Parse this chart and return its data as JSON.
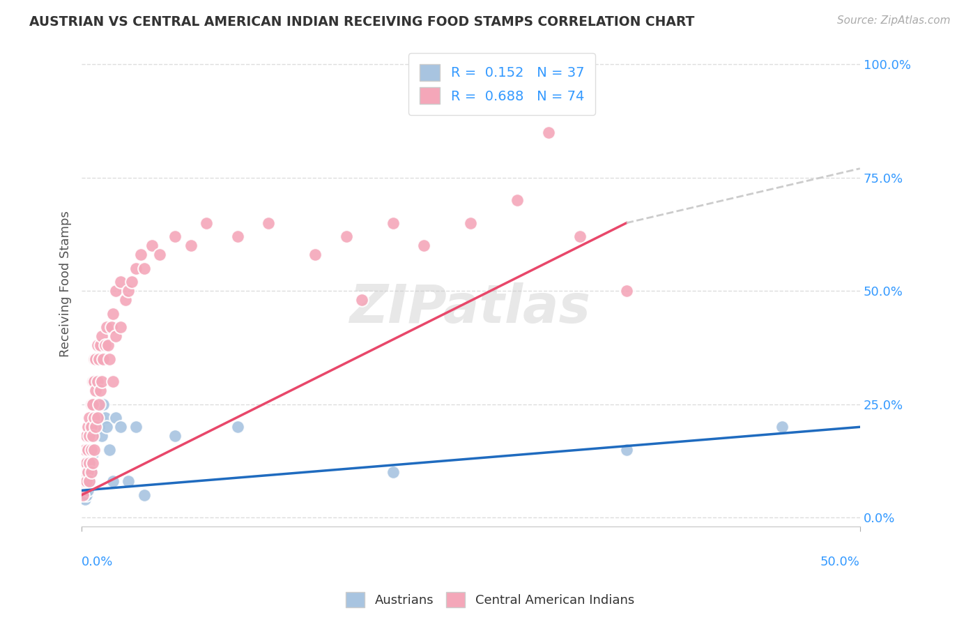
{
  "title": "AUSTRIAN VS CENTRAL AMERICAN INDIAN RECEIVING FOOD STAMPS CORRELATION CHART",
  "source": "Source: ZipAtlas.com",
  "ylabel": "Receiving Food Stamps",
  "ytick_values": [
    0.0,
    0.25,
    0.5,
    0.75,
    1.0
  ],
  "xlim": [
    0.0,
    0.5
  ],
  "ylim": [
    -0.02,
    1.05
  ],
  "watermark": "ZIPatlas",
  "legend1_label": "R =  0.152   N = 37",
  "legend2_label": "R =  0.688   N = 74",
  "austrian_color": "#a8c4e0",
  "central_american_color": "#f4a7b9",
  "austrian_line_color": "#1f6bbf",
  "central_american_line_color": "#e8476a",
  "dashed_line_color": "#cccccc",
  "background_color": "#ffffff",
  "grid_color": "#dddddd",
  "austrian_scatter": [
    [
      0.001,
      0.05
    ],
    [
      0.002,
      0.04
    ],
    [
      0.002,
      0.06
    ],
    [
      0.003,
      0.05
    ],
    [
      0.003,
      0.08
    ],
    [
      0.004,
      0.06
    ],
    [
      0.004,
      0.1
    ],
    [
      0.005,
      0.08
    ],
    [
      0.005,
      0.12
    ],
    [
      0.005,
      0.15
    ],
    [
      0.006,
      0.1
    ],
    [
      0.006,
      0.18
    ],
    [
      0.007,
      0.14
    ],
    [
      0.007,
      0.2
    ],
    [
      0.008,
      0.18
    ],
    [
      0.008,
      0.22
    ],
    [
      0.009,
      0.2
    ],
    [
      0.01,
      0.22
    ],
    [
      0.01,
      0.25
    ],
    [
      0.011,
      0.2
    ],
    [
      0.012,
      0.22
    ],
    [
      0.013,
      0.18
    ],
    [
      0.014,
      0.25
    ],
    [
      0.015,
      0.22
    ],
    [
      0.016,
      0.2
    ],
    [
      0.018,
      0.15
    ],
    [
      0.02,
      0.08
    ],
    [
      0.022,
      0.22
    ],
    [
      0.025,
      0.2
    ],
    [
      0.03,
      0.08
    ],
    [
      0.035,
      0.2
    ],
    [
      0.04,
      0.05
    ],
    [
      0.06,
      0.18
    ],
    [
      0.1,
      0.2
    ],
    [
      0.2,
      0.1
    ],
    [
      0.35,
      0.15
    ],
    [
      0.45,
      0.2
    ]
  ],
  "central_scatter": [
    [
      0.001,
      0.05
    ],
    [
      0.001,
      0.08
    ],
    [
      0.002,
      0.1
    ],
    [
      0.002,
      0.12
    ],
    [
      0.002,
      0.15
    ],
    [
      0.003,
      0.08
    ],
    [
      0.003,
      0.12
    ],
    [
      0.003,
      0.18
    ],
    [
      0.004,
      0.1
    ],
    [
      0.004,
      0.15
    ],
    [
      0.004,
      0.2
    ],
    [
      0.005,
      0.08
    ],
    [
      0.005,
      0.12
    ],
    [
      0.005,
      0.18
    ],
    [
      0.005,
      0.22
    ],
    [
      0.006,
      0.1
    ],
    [
      0.006,
      0.15
    ],
    [
      0.006,
      0.2
    ],
    [
      0.006,
      0.25
    ],
    [
      0.007,
      0.12
    ],
    [
      0.007,
      0.18
    ],
    [
      0.007,
      0.25
    ],
    [
      0.007,
      0.3
    ],
    [
      0.008,
      0.15
    ],
    [
      0.008,
      0.22
    ],
    [
      0.008,
      0.3
    ],
    [
      0.008,
      0.35
    ],
    [
      0.009,
      0.2
    ],
    [
      0.009,
      0.28
    ],
    [
      0.009,
      0.35
    ],
    [
      0.01,
      0.22
    ],
    [
      0.01,
      0.3
    ],
    [
      0.01,
      0.38
    ],
    [
      0.011,
      0.25
    ],
    [
      0.011,
      0.35
    ],
    [
      0.012,
      0.28
    ],
    [
      0.012,
      0.38
    ],
    [
      0.013,
      0.3
    ],
    [
      0.013,
      0.4
    ],
    [
      0.014,
      0.35
    ],
    [
      0.015,
      0.38
    ],
    [
      0.016,
      0.42
    ],
    [
      0.017,
      0.38
    ],
    [
      0.018,
      0.35
    ],
    [
      0.019,
      0.42
    ],
    [
      0.02,
      0.3
    ],
    [
      0.02,
      0.45
    ],
    [
      0.022,
      0.4
    ],
    [
      0.022,
      0.5
    ],
    [
      0.025,
      0.42
    ],
    [
      0.025,
      0.52
    ],
    [
      0.028,
      0.48
    ],
    [
      0.03,
      0.5
    ],
    [
      0.032,
      0.52
    ],
    [
      0.035,
      0.55
    ],
    [
      0.038,
      0.58
    ],
    [
      0.04,
      0.55
    ],
    [
      0.045,
      0.6
    ],
    [
      0.05,
      0.58
    ],
    [
      0.06,
      0.62
    ],
    [
      0.07,
      0.6
    ],
    [
      0.08,
      0.65
    ],
    [
      0.1,
      0.62
    ],
    [
      0.12,
      0.65
    ],
    [
      0.15,
      0.58
    ],
    [
      0.17,
      0.62
    ],
    [
      0.2,
      0.65
    ],
    [
      0.22,
      0.6
    ],
    [
      0.25,
      0.65
    ],
    [
      0.28,
      0.7
    ],
    [
      0.3,
      0.85
    ],
    [
      0.32,
      0.62
    ],
    [
      0.35,
      0.5
    ],
    [
      0.18,
      0.48
    ]
  ],
  "austrian_line": {
    "x0": 0.0,
    "y0": 0.06,
    "x1": 0.5,
    "y1": 0.2
  },
  "central_line": {
    "x0": 0.0,
    "y0": 0.05,
    "x1": 0.35,
    "y1": 0.65
  },
  "dashed_line": {
    "x0": 0.35,
    "y0": 0.65,
    "x1": 0.5,
    "y1": 0.77
  }
}
